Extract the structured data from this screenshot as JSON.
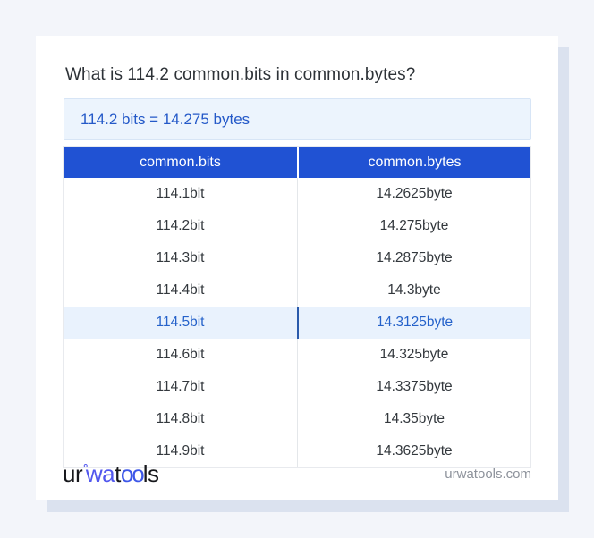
{
  "page": {
    "question": "What is 114.2 common.bits in common.bytes?"
  },
  "result": {
    "text": "114.2 bits = 14.275 bytes"
  },
  "table": {
    "headers": [
      "common.bits",
      "common.bytes"
    ],
    "rows": [
      {
        "bits": "114.1bit",
        "bytes": "14.2625byte",
        "highlight": false
      },
      {
        "bits": "114.2bit",
        "bytes": "14.275byte",
        "highlight": false
      },
      {
        "bits": "114.3bit",
        "bytes": "14.2875byte",
        "highlight": false
      },
      {
        "bits": "114.4bit",
        "bytes": "14.3byte",
        "highlight": false
      },
      {
        "bits": "114.5bit",
        "bytes": "14.3125byte",
        "highlight": true
      },
      {
        "bits": "114.6bit",
        "bytes": "14.325byte",
        "highlight": false
      },
      {
        "bits": "114.7bit",
        "bytes": "14.3375byte",
        "highlight": false
      },
      {
        "bits": "114.8bit",
        "bytes": "14.35byte",
        "highlight": false
      },
      {
        "bits": "114.9bit",
        "bytes": "14.3625byte",
        "highlight": false
      }
    ]
  },
  "footer": {
    "logo": {
      "part_ur": "ur",
      "ring": "°",
      "part_wa": "wa",
      "part_t": "t",
      "part_oo": "oo",
      "part_ls": "ls"
    },
    "site": "urwatools.com"
  },
  "colors": {
    "page_background": "#f3f5fa",
    "card_background": "#ffffff",
    "card_shadow": "#dbe2ef",
    "header_blue": "#2052d3",
    "result_background": "#ecf4fd",
    "result_text": "#2459c8",
    "highlight_row_background": "#e9f2fd",
    "highlight_row_text": "#2562ca",
    "highlight_divider": "#2a5aab",
    "cell_text": "#33383d",
    "logo_blue": "#5157ee",
    "footer_text": "#8d929b"
  }
}
